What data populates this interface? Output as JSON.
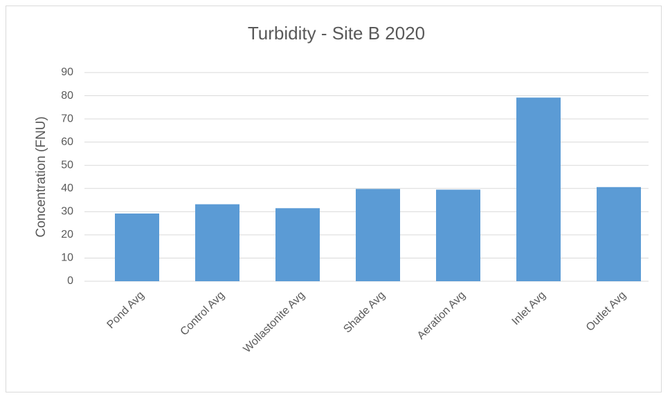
{
  "chart_data": {
    "type": "bar",
    "title": "Turbidity - Site B 2020",
    "y_label": "Concentration (FNU)",
    "categories": [
      "Pond Avg",
      "Control Avg",
      "Wollastonite Avg",
      "Shade Avg",
      "Aeration Avg",
      "Inlet Avg",
      "Outlet Avg"
    ],
    "values": [
      29.2,
      33.2,
      31.5,
      39.8,
      39.5,
      79.2,
      40.6
    ],
    "color": "#5b9bd5",
    "ylim": [
      0,
      90
    ],
    "yticks": [
      0,
      10,
      20,
      30,
      40,
      50,
      60,
      70,
      80,
      90
    ],
    "grid": true
  }
}
